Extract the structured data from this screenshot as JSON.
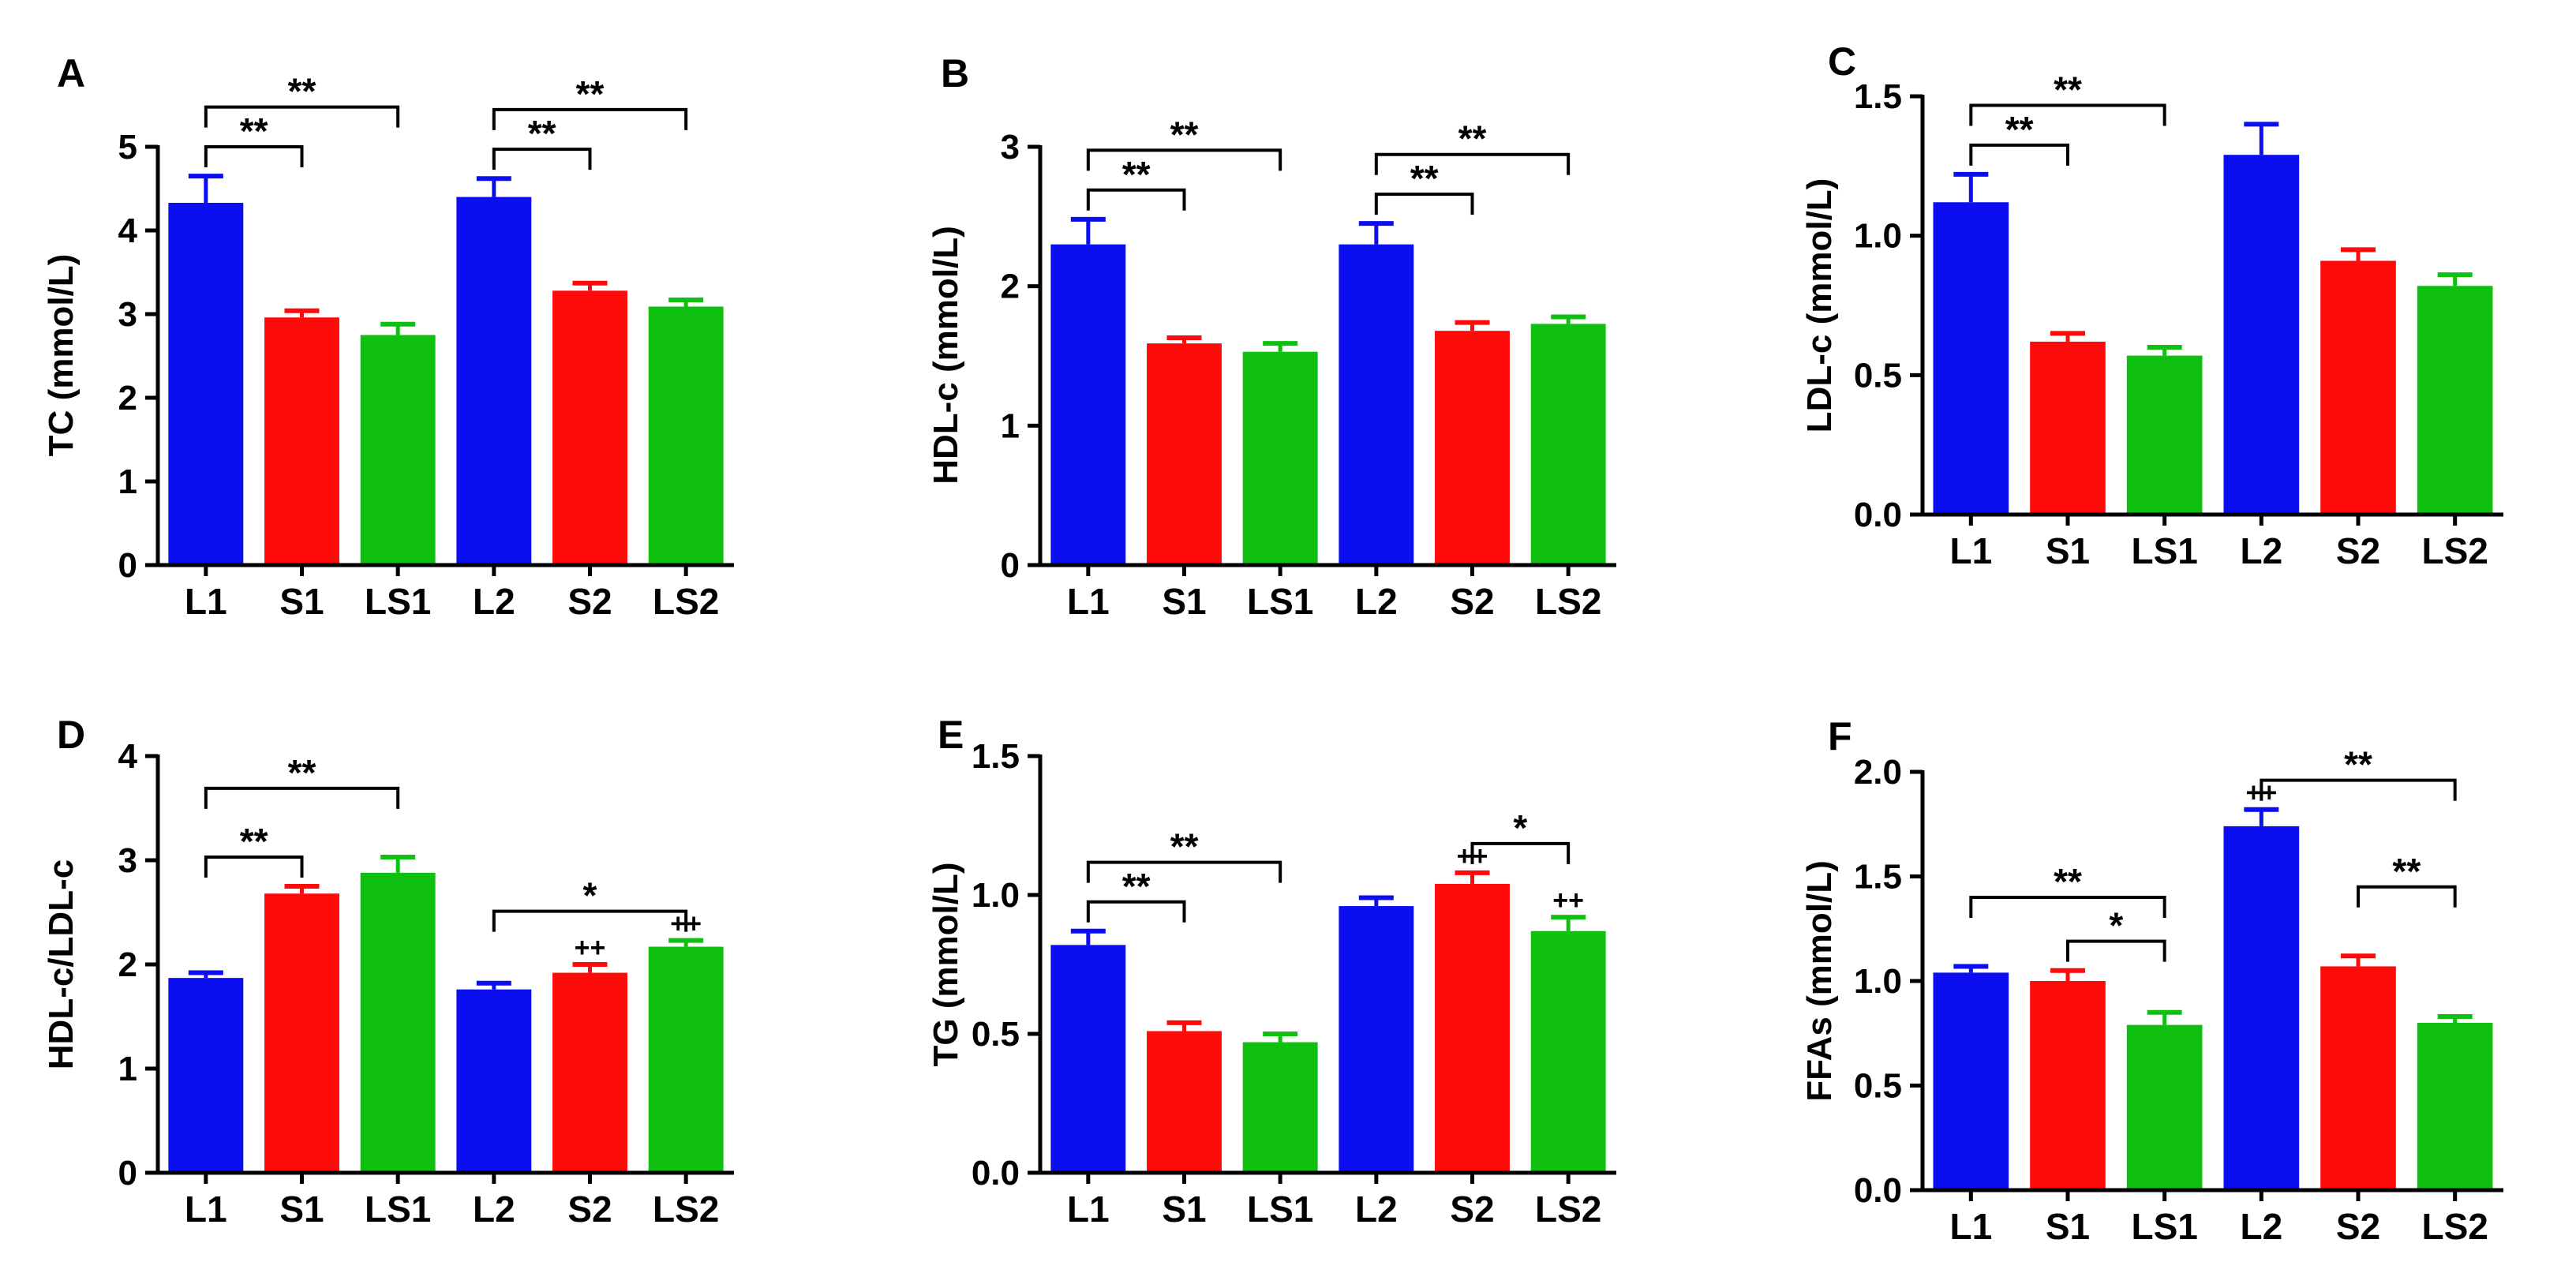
{
  "colors": {
    "L": "#0a0ef0",
    "S": "#ff0a0a",
    "LS": "#10c010",
    "axis": "#000000"
  },
  "chart_data": [
    {
      "type": "bar",
      "panel": "A",
      "ylabel": "TC (mmol/L)",
      "categories": [
        "L1",
        "S1",
        "LS1",
        "L2",
        "S2",
        "LS2"
      ],
      "values": [
        4.33,
        2.96,
        2.75,
        4.4,
        3.28,
        3.09
      ],
      "errors": [
        0.32,
        0.08,
        0.13,
        0.22,
        0.09,
        0.08
      ],
      "ylim": [
        0,
        5
      ],
      "ticks": [
        "0",
        "1",
        "2",
        "3",
        "4",
        "5"
      ],
      "annotations": [
        {
          "type": "bracket",
          "from": 0,
          "to": 1,
          "label": "**"
        },
        {
          "type": "bracket",
          "from": 0,
          "to": 2,
          "label": "**"
        },
        {
          "type": "bracket",
          "from": 3,
          "to": 4,
          "label": "**"
        },
        {
          "type": "bracket",
          "from": 3,
          "to": 5,
          "label": "**"
        }
      ]
    },
    {
      "type": "bar",
      "panel": "B",
      "ylabel": "HDL-c (mmol/L)",
      "categories": [
        "L1",
        "S1",
        "LS1",
        "L2",
        "S2",
        "LS2"
      ],
      "values": [
        2.3,
        1.59,
        1.53,
        2.3,
        1.68,
        1.73
      ],
      "errors": [
        0.18,
        0.04,
        0.06,
        0.15,
        0.06,
        0.05
      ],
      "ylim": [
        0,
        3
      ],
      "ticks": [
        "0",
        "1",
        "2",
        "3"
      ],
      "annotations": [
        {
          "type": "bracket",
          "from": 0,
          "to": 1,
          "label": "**"
        },
        {
          "type": "bracket",
          "from": 0,
          "to": 2,
          "label": "**"
        },
        {
          "type": "bracket",
          "from": 3,
          "to": 4,
          "label": "**"
        },
        {
          "type": "bracket",
          "from": 3,
          "to": 5,
          "label": "**"
        }
      ]
    },
    {
      "type": "bar",
      "panel": "C",
      "ylabel": "LDL-c (mmol/L)",
      "categories": [
        "L1",
        "S1",
        "LS1",
        "L2",
        "S2",
        "LS2"
      ],
      "values": [
        1.12,
        0.62,
        0.57,
        1.29,
        0.91,
        0.82
      ],
      "errors": [
        0.1,
        0.03,
        0.03,
        0.11,
        0.04,
        0.04
      ],
      "ylim": [
        0,
        1.5
      ],
      "ticks": [
        "0.0",
        "0.5",
        "1.0",
        "1.5"
      ],
      "annotations": [
        {
          "type": "bracket",
          "from": 0,
          "to": 1,
          "label": "**"
        },
        {
          "type": "bracket",
          "from": 0,
          "to": 2,
          "label": "**"
        }
      ]
    },
    {
      "type": "bar",
      "panel": "D",
      "ylabel": "HDL-c/LDL-c",
      "categories": [
        "L1",
        "S1",
        "LS1",
        "L2",
        "S2",
        "LS2"
      ],
      "values": [
        1.87,
        2.68,
        2.88,
        1.76,
        1.92,
        2.17
      ],
      "errors": [
        0.05,
        0.07,
        0.15,
        0.06,
        0.08,
        0.06
      ],
      "ylim": [
        0,
        4
      ],
      "ticks": [
        "0",
        "1",
        "2",
        "3",
        "4"
      ],
      "annotations": [
        {
          "type": "bracket",
          "from": 0,
          "to": 1,
          "label": "**"
        },
        {
          "type": "bracket",
          "from": 0,
          "to": 2,
          "label": "**"
        },
        {
          "type": "bracket",
          "from": 3,
          "to": 5,
          "label": "*"
        },
        {
          "type": "mark",
          "bar": 4,
          "label": "++"
        },
        {
          "type": "mark",
          "bar": 5,
          "label": "++"
        }
      ]
    },
    {
      "type": "bar",
      "panel": "E",
      "ylabel": "TG (mmol/L)",
      "categories": [
        "L1",
        "S1",
        "LS1",
        "L2",
        "S2",
        "LS2"
      ],
      "values": [
        0.82,
        0.51,
        0.47,
        0.96,
        1.04,
        0.87
      ],
      "errors": [
        0.05,
        0.03,
        0.03,
        0.03,
        0.04,
        0.05
      ],
      "ylim": [
        0,
        1.5
      ],
      "ticks": [
        "0.0",
        "0.5",
        "1.0",
        "1.5"
      ],
      "annotations": [
        {
          "type": "bracket",
          "from": 0,
          "to": 1,
          "label": "**"
        },
        {
          "type": "bracket",
          "from": 0,
          "to": 2,
          "label": "**"
        },
        {
          "type": "bracket",
          "from": 4,
          "to": 5,
          "label": "*"
        },
        {
          "type": "mark",
          "bar": 4,
          "label": "++"
        },
        {
          "type": "mark",
          "bar": 5,
          "label": "++"
        }
      ]
    },
    {
      "type": "bar",
      "panel": "F",
      "ylabel": "FFAs (mmol/L)",
      "categories": [
        "L1",
        "S1",
        "LS1",
        "L2",
        "S2",
        "LS2"
      ],
      "values": [
        1.04,
        1.0,
        0.79,
        1.74,
        1.07,
        0.8
      ],
      "errors": [
        0.03,
        0.05,
        0.06,
        0.08,
        0.05,
        0.03
      ],
      "ylim": [
        0,
        2.0
      ],
      "ticks": [
        "0.0",
        "0.5",
        "1.0",
        "1.5",
        "2.0"
      ],
      "annotations": [
        {
          "type": "bracket",
          "from": 1,
          "to": 2,
          "label": "*"
        },
        {
          "type": "bracket",
          "from": 0,
          "to": 2,
          "label": "**"
        },
        {
          "type": "bracket",
          "from": 3,
          "to": 5,
          "label": "**"
        },
        {
          "type": "bracket",
          "from": 4,
          "to": 5,
          "label": "**"
        },
        {
          "type": "mark",
          "bar": 3,
          "label": "++"
        }
      ]
    }
  ]
}
